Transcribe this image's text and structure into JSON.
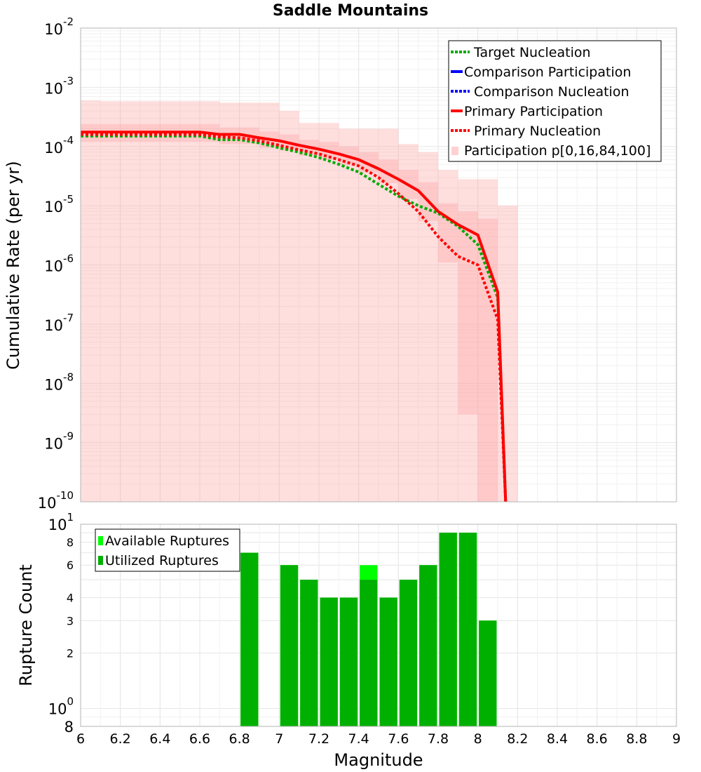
{
  "chart_data": [
    {
      "type": "line",
      "title": "Saddle Mountains",
      "ylabel": "Cumulative Rate (per yr)",
      "xlabel": "",
      "yscale": "log",
      "xlim": [
        6,
        9
      ],
      "ylim": [
        1e-10,
        0.01
      ],
      "grid": true,
      "legend_position": "top-right",
      "y_ticks": [
        {
          "base": "10",
          "exp": "-10"
        },
        {
          "base": "10",
          "exp": "-9"
        },
        {
          "base": "10",
          "exp": "-8"
        },
        {
          "base": "10",
          "exp": "-7"
        },
        {
          "base": "10",
          "exp": "-6"
        },
        {
          "base": "10",
          "exp": "-5"
        },
        {
          "base": "10",
          "exp": "-4"
        },
        {
          "base": "10",
          "exp": "-3"
        },
        {
          "base": "10",
          "exp": "-2"
        }
      ],
      "band": {
        "name": "Participation p[0,16,84,100]",
        "color": "#ff9999",
        "x": [
          6.0,
          6.1,
          6.2,
          6.3,
          6.4,
          6.5,
          6.6,
          6.7,
          6.8,
          6.9,
          7.0,
          7.1,
          7.2,
          7.3,
          7.4,
          7.5,
          7.6,
          7.7,
          7.8,
          7.9,
          8.0,
          8.1
        ],
        "p0": [
          1e-10,
          1e-10,
          1e-10,
          1e-10,
          1e-10,
          1e-10,
          1e-10,
          1e-10,
          1e-10,
          1e-10,
          1e-10,
          1e-10,
          1e-10,
          1e-10,
          1e-10,
          1e-10,
          1e-10,
          1e-10,
          1e-10,
          1e-10,
          1e-10,
          1e-10
        ],
        "p16": [
          0.00012,
          0.00012,
          0.00012,
          0.00012,
          0.00012,
          0.00012,
          0.00012,
          0.00011,
          0.00011,
          9.5e-05,
          8.5e-05,
          7e-05,
          6e-05,
          4.8e-05,
          3.6e-05,
          2.4e-05,
          1.3e-05,
          5.5e-06,
          1.1e-06,
          3e-09,
          1e-10,
          1e-10
        ],
        "p84": [
          0.00024,
          0.00024,
          0.00024,
          0.00024,
          0.00024,
          0.00024,
          0.00024,
          0.00021,
          0.00021,
          0.00018,
          0.00016,
          0.00013,
          0.00012,
          0.0001,
          8e-05,
          6e-05,
          4e-05,
          2.5e-05,
          1.1e-05,
          8e-06,
          6e-06,
          1e-10
        ],
        "p100": [
          0.0006,
          0.00058,
          0.00058,
          0.00058,
          0.00058,
          0.00058,
          0.00058,
          0.00055,
          0.00055,
          0.00055,
          0.0004,
          0.00025,
          0.00025,
          0.0002,
          0.0002,
          0.0002,
          0.00011,
          8e-05,
          4e-05,
          2.8e-05,
          2.8e-05,
          1e-05
        ]
      },
      "series": [
        {
          "name": "Target Nucleation",
          "color": "#00aa00",
          "style": "dotted",
          "x": [
            6.0,
            6.6,
            6.7,
            6.8,
            6.9,
            7.0,
            7.1,
            7.2,
            7.3,
            7.4,
            7.5,
            7.6,
            7.7,
            7.8,
            7.9,
            8.0,
            8.1,
            8.14
          ],
          "y": [
            0.00015,
            0.00015,
            0.00013,
            0.00013,
            0.000115,
            9.5e-05,
            8e-05,
            6.5e-05,
            5e-05,
            3.7e-05,
            2.3e-05,
            1.45e-05,
            1e-05,
            7.5e-06,
            4.5e-06,
            2.2e-06,
            2.8e-07,
            1e-10
          ]
        },
        {
          "name": "Comparison Participation",
          "color": "#0000ff",
          "style": "solid",
          "x": [],
          "y": []
        },
        {
          "name": "Comparison Nucleation",
          "color": "#0000ff",
          "style": "dotted",
          "x": [],
          "y": []
        },
        {
          "name": "Primary Participation",
          "color": "#ff0000",
          "style": "solid",
          "x": [
            6.0,
            6.6,
            6.7,
            6.8,
            6.9,
            7.0,
            7.1,
            7.2,
            7.3,
            7.4,
            7.5,
            7.6,
            7.7,
            7.8,
            7.9,
            8.0,
            8.1,
            8.14
          ],
          "y": [
            0.000175,
            0.000175,
            0.00016,
            0.00016,
            0.00014,
            0.000125,
            0.000105,
            9e-05,
            7.5e-05,
            6e-05,
            4.2e-05,
            2.8e-05,
            1.8e-05,
            8e-06,
            4.8e-06,
            3.2e-06,
            3.5e-07,
            1e-10
          ]
        },
        {
          "name": "Primary Nucleation",
          "color": "#ff0000",
          "style": "dotted",
          "x": [
            6.0,
            6.6,
            6.7,
            6.8,
            6.9,
            7.0,
            7.1,
            7.2,
            7.3,
            7.4,
            7.5,
            7.6,
            7.7,
            7.8,
            7.9,
            8.0,
            8.1,
            8.14
          ],
          "y": [
            0.00016,
            0.00016,
            0.000145,
            0.00014,
            0.000125,
            0.000105,
            8.8e-05,
            7.5e-05,
            6e-05,
            4.7e-05,
            3e-05,
            1.6e-05,
            8e-06,
            3e-06,
            1.4e-06,
            1e-06,
            1.2e-07,
            1e-10
          ]
        }
      ]
    },
    {
      "type": "bar",
      "ylabel": "Rupture Count",
      "xlabel": "Magnitude",
      "yscale": "log",
      "xlim": [
        6,
        9
      ],
      "ylim": [
        0.8,
        10
      ],
      "grid": true,
      "legend_position": "top-left",
      "x_ticks": [
        "6",
        "6.2",
        "6.4",
        "6.6",
        "6.8",
        "7",
        "7.2",
        "7.4",
        "7.6",
        "7.8",
        "8",
        "8.2",
        "8.4",
        "8.6",
        "8.8",
        "9"
      ],
      "y_ticks": [
        {
          "value": 0.8,
          "label": "8",
          "exp": ""
        },
        {
          "value": 1,
          "label": "10",
          "exp": "0"
        },
        {
          "value": 2,
          "label": "2",
          "exp": ""
        },
        {
          "value": 3,
          "label": "3",
          "exp": ""
        },
        {
          "value": 4,
          "label": "4",
          "exp": ""
        },
        {
          "value": 6,
          "label": "6",
          "exp": ""
        },
        {
          "value": 8,
          "label": "8",
          "exp": ""
        },
        {
          "value": 10,
          "label": "10",
          "exp": "1"
        }
      ],
      "bin_width": 0.1,
      "series": [
        {
          "name": "Available Ruptures",
          "color": "#00ff00",
          "x": [
            6.85,
            7.05,
            7.15,
            7.25,
            7.35,
            7.45,
            7.55,
            7.65,
            7.75,
            7.85,
            7.95,
            8.05
          ],
          "values": [
            7,
            6,
            5,
            4,
            4,
            6,
            4,
            5,
            6,
            9,
            9,
            3
          ]
        },
        {
          "name": "Utilized Ruptures",
          "color": "#00b000",
          "x": [
            6.85,
            7.05,
            7.15,
            7.25,
            7.35,
            7.45,
            7.55,
            7.65,
            7.75,
            7.85,
            7.95,
            8.05
          ],
          "values": [
            7,
            6,
            5,
            4,
            4,
            5,
            4,
            5,
            6,
            9,
            9,
            3
          ]
        }
      ]
    }
  ]
}
